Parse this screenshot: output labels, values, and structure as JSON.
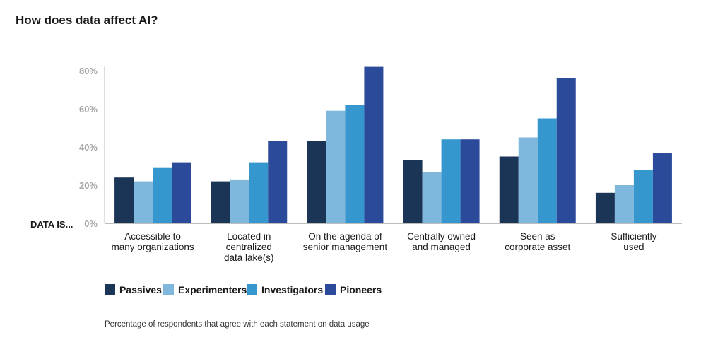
{
  "chart_data": {
    "type": "bar",
    "title": "How does data affect AI?",
    "xlabel": "DATA IS...",
    "ylabel": "",
    "ylim": [
      0,
      80
    ],
    "yticks": [
      "0%",
      "20%",
      "40%",
      "60%",
      "80%"
    ],
    "grid": false,
    "legend": "bottom-left",
    "footnote": "Percentage of respondents that agree with each statement on data usage",
    "categories": [
      [
        "Accessible to",
        "many organizations"
      ],
      [
        "Located in",
        "centralized",
        "data lake(s)"
      ],
      [
        "On the agenda of",
        "senior management"
      ],
      [
        "Centrally owned",
        "and managed"
      ],
      [
        "Seen as",
        "corporate asset"
      ],
      [
        "Sufficiently",
        "used"
      ]
    ],
    "series": [
      {
        "name": "Passives",
        "color": "#1b3556",
        "values": [
          24,
          22,
          43,
          33,
          35,
          16
        ]
      },
      {
        "name": "Experimenters",
        "color": "#7fb7dd",
        "values": [
          22,
          23,
          59,
          27,
          45,
          20
        ]
      },
      {
        "name": "Investigators",
        "color": "#3697cf",
        "values": [
          29,
          32,
          62,
          44,
          55,
          28
        ]
      },
      {
        "name": "Pioneers",
        "color": "#2c4a9a",
        "values": [
          32,
          43,
          82,
          44,
          76,
          37
        ]
      }
    ]
  }
}
